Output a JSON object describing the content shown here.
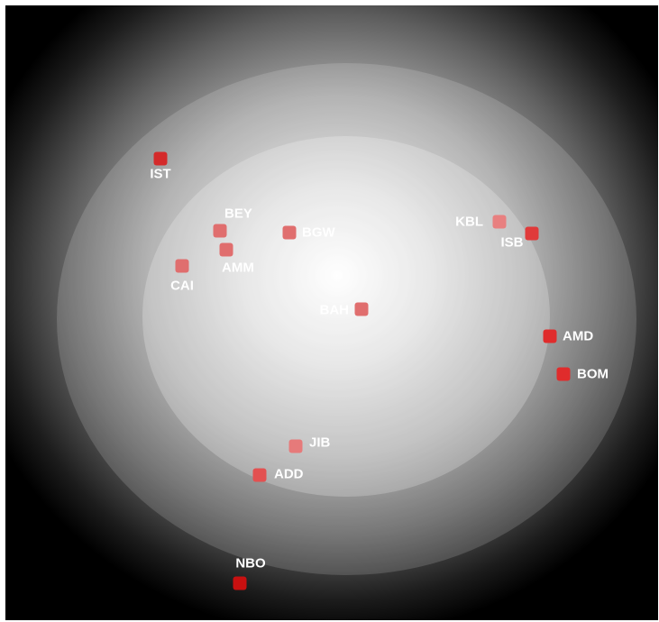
{
  "airports": [
    {
      "code": "IST",
      "color": "#d42a2a"
    },
    {
      "code": "BEY",
      "color": "#e06e6e"
    },
    {
      "code": "AMM",
      "color": "#e06e6e"
    },
    {
      "code": "CAI",
      "color": "#e06e6e"
    },
    {
      "code": "BGW",
      "color": "#e06e6e"
    },
    {
      "code": "KBL",
      "color": "#e88080"
    },
    {
      "code": "ISB",
      "color": "#e03a3a"
    },
    {
      "code": "BAH",
      "color": "#e06e6e"
    },
    {
      "code": "AMD",
      "color": "#e02c2c"
    },
    {
      "code": "BOM",
      "color": "#e02c2c"
    },
    {
      "code": "JIB",
      "color": "#e67a7a"
    },
    {
      "code": "ADD",
      "color": "#e35050"
    },
    {
      "code": "NBO",
      "color": "#c81010"
    }
  ]
}
